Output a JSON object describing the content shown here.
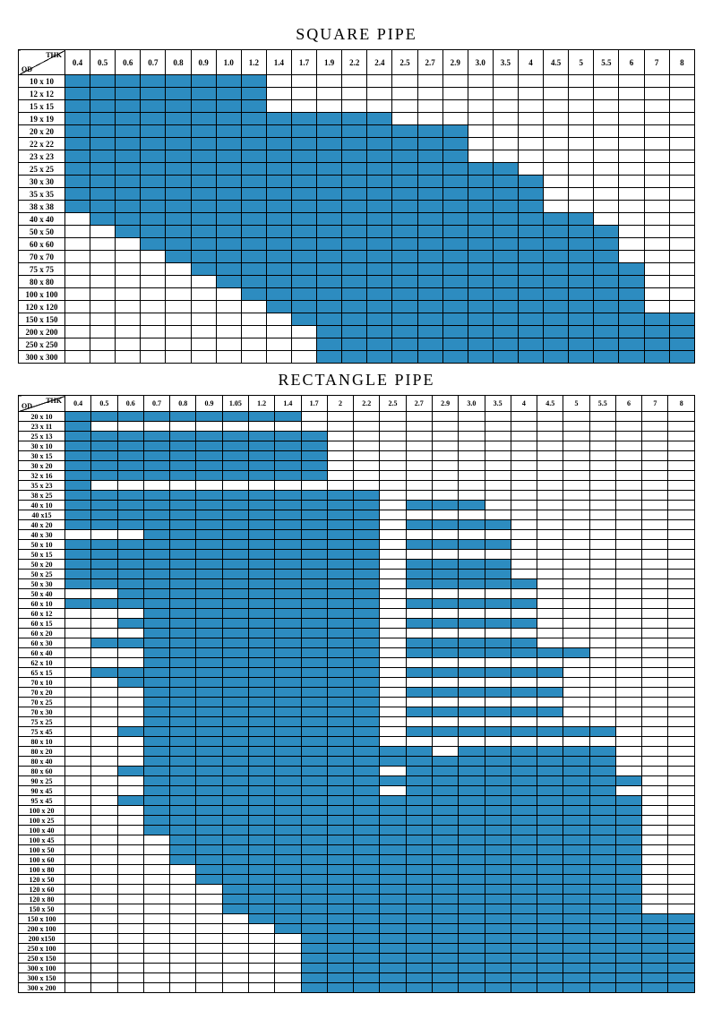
{
  "colors": {
    "fill": "#2d8cc0",
    "empty": "#ffffff",
    "border": "#000000",
    "background": "#ffffff"
  },
  "corner_labels": {
    "thk": "THK",
    "od": "OD"
  },
  "square": {
    "title": "SQUARE PIPE",
    "thk_headers": [
      "0.4",
      "0.5",
      "0.6",
      "0.7",
      "0.8",
      "0.9",
      "1.0",
      "1.2",
      "1.4",
      "1.7",
      "1.9",
      "2.2",
      "2.4",
      "2.5",
      "2.7",
      "2.9",
      "3.0",
      "3.5",
      "4",
      "4.5",
      "5",
      "5.5",
      "6",
      "7",
      "8"
    ],
    "rows": [
      {
        "od": "10 x 10",
        "r": [
          0,
          7
        ]
      },
      {
        "od": "12 x 12",
        "r": [
          0,
          7
        ]
      },
      {
        "od": "15 x 15",
        "r": [
          0,
          7
        ]
      },
      {
        "od": "19 x 19",
        "r": [
          0,
          12
        ]
      },
      {
        "od": "20 x 20",
        "r": [
          0,
          15
        ]
      },
      {
        "od": "22 x 22",
        "r": [
          0,
          15
        ]
      },
      {
        "od": "23 x 23",
        "r": [
          0,
          15
        ]
      },
      {
        "od": "25 x 25",
        "r": [
          0,
          17
        ]
      },
      {
        "od": "30 x 30",
        "r": [
          0,
          18
        ]
      },
      {
        "od": "35 x 35",
        "r": [
          0,
          18
        ]
      },
      {
        "od": "38 x 38",
        "r": [
          0,
          18
        ]
      },
      {
        "od": "40 x 40",
        "r": [
          1,
          20
        ]
      },
      {
        "od": "50 x 50",
        "r": [
          2,
          21
        ]
      },
      {
        "od": "60 x 60",
        "r": [
          3,
          21
        ]
      },
      {
        "od": "70 x 70",
        "r": [
          4,
          21
        ]
      },
      {
        "od": "75 x 75",
        "r": [
          5,
          22
        ]
      },
      {
        "od": "80 x 80",
        "r": [
          6,
          22
        ]
      },
      {
        "od": "100 x 100",
        "r": [
          7,
          22
        ]
      },
      {
        "od": "120 x 120",
        "r": [
          8,
          22
        ]
      },
      {
        "od": "150 x 150",
        "r": [
          9,
          24
        ]
      },
      {
        "od": "200 x 200",
        "r": [
          10,
          24
        ]
      },
      {
        "od": "250 x 250",
        "r": [
          10,
          24
        ]
      },
      {
        "od": "300 x 300",
        "r": [
          10,
          24
        ]
      }
    ]
  },
  "rectangle": {
    "title": "RECTANGLE   PIPE",
    "thk_headers": [
      "0.4",
      "0.5",
      "0.6",
      "0.7",
      "0.8",
      "0.9",
      "1.05",
      "1.2",
      "1.4",
      "1.7",
      "2",
      "2.2",
      "2.5",
      "2.7",
      "2.9",
      "3.0",
      "3.5",
      "4",
      "4.5",
      "5",
      "5.5",
      "6",
      "7",
      "8"
    ],
    "rows": [
      {
        "od": "20 x 10",
        "cells": [
          [
            0,
            8
          ]
        ]
      },
      {
        "od": "23 x 11",
        "cells": [
          [
            0,
            0
          ]
        ]
      },
      {
        "od": "25 x 13",
        "cells": [
          [
            0,
            9
          ]
        ]
      },
      {
        "od": "30 x 10",
        "cells": [
          [
            0,
            9
          ]
        ]
      },
      {
        "od": "30 x 15",
        "cells": [
          [
            0,
            9
          ]
        ]
      },
      {
        "od": "30 x 20",
        "cells": [
          [
            0,
            9
          ]
        ]
      },
      {
        "od": "32 x 16",
        "cells": [
          [
            0,
            9
          ]
        ]
      },
      {
        "od": "35 x 23",
        "cells": [
          [
            0,
            0
          ]
        ]
      },
      {
        "od": "38 x 25",
        "cells": [
          [
            0,
            11
          ]
        ]
      },
      {
        "od": "40 x 10",
        "cells": [
          [
            0,
            11
          ],
          [
            13,
            15
          ]
        ]
      },
      {
        "od": "40 x15",
        "cells": [
          [
            0,
            11
          ]
        ]
      },
      {
        "od": "40 x 20",
        "cells": [
          [
            0,
            11
          ],
          [
            13,
            16
          ]
        ]
      },
      {
        "od": "40 x 30",
        "cells": [
          [
            3,
            11
          ]
        ]
      },
      {
        "od": "50 x 10",
        "cells": [
          [
            0,
            11
          ],
          [
            13,
            16
          ]
        ]
      },
      {
        "od": "50 x 15",
        "cells": [
          [
            0,
            11
          ]
        ]
      },
      {
        "od": "50 x 20",
        "cells": [
          [
            0,
            11
          ],
          [
            13,
            16
          ]
        ]
      },
      {
        "od": "50 x 25",
        "cells": [
          [
            0,
            11
          ],
          [
            13,
            16
          ]
        ]
      },
      {
        "od": "50 x 30",
        "cells": [
          [
            0,
            11
          ],
          [
            13,
            17
          ]
        ]
      },
      {
        "od": "50 x 40",
        "cells": [
          [
            2,
            11
          ]
        ]
      },
      {
        "od": "60 x 10",
        "cells": [
          [
            0,
            11
          ],
          [
            13,
            17
          ]
        ]
      },
      {
        "od": "60 x 12",
        "cells": [
          [
            3,
            11
          ]
        ]
      },
      {
        "od": "60 x 15",
        "cells": [
          [
            2,
            2
          ],
          [
            3,
            11
          ],
          [
            13,
            17
          ]
        ]
      },
      {
        "od": "60 x 20",
        "cells": [
          [
            3,
            11
          ]
        ]
      },
      {
        "od": "60 x 30",
        "cells": [
          [
            1,
            11
          ],
          [
            13,
            17
          ]
        ]
      },
      {
        "od": "60 x 40",
        "cells": [
          [
            3,
            11
          ],
          [
            13,
            19
          ]
        ]
      },
      {
        "od": "62 x 10",
        "cells": [
          [
            3,
            11
          ]
        ]
      },
      {
        "od": "65 x 15",
        "cells": [
          [
            1,
            11
          ],
          [
            13,
            18
          ]
        ]
      },
      {
        "od": "70 x 10",
        "cells": [
          [
            2,
            2
          ],
          [
            3,
            11
          ]
        ]
      },
      {
        "od": "70 x 20",
        "cells": [
          [
            3,
            11
          ],
          [
            13,
            18
          ]
        ]
      },
      {
        "od": "70 x 25",
        "cells": [
          [
            3,
            11
          ]
        ]
      },
      {
        "od": "70 x 30",
        "cells": [
          [
            3,
            11
          ],
          [
            13,
            18
          ]
        ]
      },
      {
        "od": "75 x 25",
        "cells": [
          [
            3,
            11
          ]
        ]
      },
      {
        "od": "75 x 45",
        "cells": [
          [
            2,
            11
          ],
          [
            13,
            20
          ]
        ]
      },
      {
        "od": "80 x 10",
        "cells": [
          [
            3,
            11
          ]
        ]
      },
      {
        "od": "80 x 20",
        "cells": [
          [
            3,
            13
          ],
          [
            15,
            20
          ]
        ]
      },
      {
        "od": "80 x 40",
        "cells": [
          [
            3,
            20
          ]
        ]
      },
      {
        "od": "80 x 60",
        "cells": [
          [
            2,
            11
          ],
          [
            13,
            20
          ]
        ]
      },
      {
        "od": "90 x 25",
        "cells": [
          [
            3,
            21
          ]
        ]
      },
      {
        "od": "90 x 45",
        "cells": [
          [
            3,
            11
          ],
          [
            13,
            20
          ]
        ]
      },
      {
        "od": "95 x 45",
        "cells": [
          [
            2,
            21
          ]
        ]
      },
      {
        "od": "100 x 20",
        "cells": [
          [
            3,
            21
          ]
        ]
      },
      {
        "od": "100 x 25",
        "cells": [
          [
            3,
            21
          ]
        ]
      },
      {
        "od": "100 x 40",
        "cells": [
          [
            3,
            21
          ]
        ]
      },
      {
        "od": "100 x 45",
        "cells": [
          [
            4,
            21
          ]
        ]
      },
      {
        "od": "100 x 50",
        "cells": [
          [
            4,
            21
          ]
        ]
      },
      {
        "od": "100 x 60",
        "cells": [
          [
            4,
            21
          ]
        ]
      },
      {
        "od": "100 x 80",
        "cells": [
          [
            5,
            21
          ]
        ]
      },
      {
        "od": "120 x 50",
        "cells": [
          [
            5,
            21
          ]
        ]
      },
      {
        "od": "120 x 60",
        "cells": [
          [
            6,
            21
          ]
        ]
      },
      {
        "od": "120 x 80",
        "cells": [
          [
            6,
            21
          ]
        ]
      },
      {
        "od": "150 x 50",
        "cells": [
          [
            6,
            21
          ]
        ]
      },
      {
        "od": "150 x 100",
        "cells": [
          [
            7,
            23
          ]
        ]
      },
      {
        "od": "200 x 100",
        "cells": [
          [
            8,
            23
          ]
        ]
      },
      {
        "od": "200 x150",
        "cells": [
          [
            9,
            23
          ]
        ]
      },
      {
        "od": "250 x 100",
        "cells": [
          [
            9,
            23
          ]
        ]
      },
      {
        "od": "250 x 150",
        "cells": [
          [
            9,
            23
          ]
        ]
      },
      {
        "od": "300 x 100",
        "cells": [
          [
            9,
            23
          ]
        ]
      },
      {
        "od": "300 x 150",
        "cells": [
          [
            9,
            23
          ]
        ]
      },
      {
        "od": "300 x 200",
        "cells": [
          [
            9,
            23
          ]
        ]
      }
    ]
  }
}
